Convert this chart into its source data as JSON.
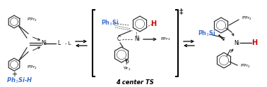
{
  "background_color": "#ffffff",
  "left_p_top": "PⁱPr₂",
  "left_p_bot": "PⁱPr₂",
  "left_ni": "Ni",
  "left_l": "L",
  "left_minus_l": "- L",
  "left_plus": "+",
  "left_reagent": "Ph₃Si-H",
  "left_reagent_color": "#3a6fcc",
  "mid_ph3si": "Ph₃Si",
  "mid_ph3si_color": "#3a6fcc",
  "mid_h": "H",
  "mid_h_color": "#cc0000",
  "mid_c": "C",
  "mid_ni": "Ni",
  "mid_ppr2": "PPr₂",
  "mid_p": "P",
  "mid_ipr2": "ⁱPr₂",
  "mid_ts": "4 center TS",
  "mid_dagger": "‡",
  "right_ph3si": "Ph₃Si",
  "right_ph3si_color": "#3a6fcc",
  "right_ni": "Ni",
  "right_h": "H",
  "right_h_color": "#cc0000",
  "right_p_top": "PⁱPr₂",
  "right_p_bot": "PⁱPr₂",
  "fig_width": 3.78,
  "fig_height": 1.24,
  "dpi": 100
}
